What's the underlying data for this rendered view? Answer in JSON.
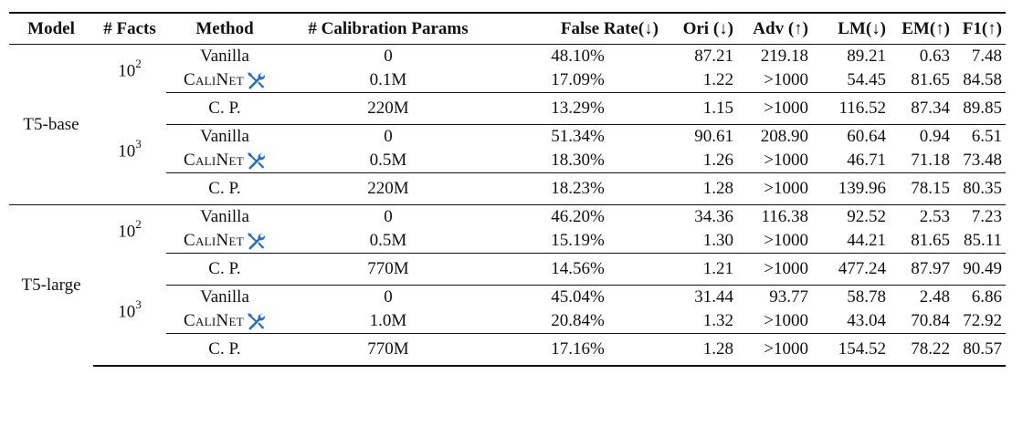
{
  "header": {
    "model": "Model",
    "facts": "# Facts",
    "method": "Method",
    "params": "# Calibration Params",
    "false_rate": "False Rate(↓)",
    "ori": "Ori (↓)",
    "adv": "Adv (↑)",
    "lm": "LM(↓)",
    "em": "EM(↑)",
    "f1": "F1(↑)"
  },
  "icons": {
    "calinet_icon": "wrench-screwdriver-icon",
    "calinet_icon_color": "#1f6fd1"
  },
  "models": [
    {
      "name": "T5-base",
      "groups": [
        {
          "facts_base": "10",
          "facts_exp": "2",
          "rows": [
            {
              "method": "Vanilla",
              "params": "0",
              "false_rate": "48.10%",
              "ori": "87.21",
              "adv": "219.18",
              "lm": "89.21",
              "em": "0.63",
              "f1": "7.48"
            },
            {
              "method": "CaliNet",
              "params": "0.1M",
              "false_rate": "17.09%",
              "ori": "1.22",
              "adv": ">1000",
              "lm": "54.45",
              "em": "81.65",
              "f1": "84.58"
            },
            {
              "method": "C. P.",
              "params": "220M",
              "false_rate": "13.29%",
              "ori": "1.15",
              "adv": ">1000",
              "lm": "116.52",
              "em": "87.34",
              "f1": "89.85"
            }
          ]
        },
        {
          "facts_base": "10",
          "facts_exp": "3",
          "rows": [
            {
              "method": "Vanilla",
              "params": "0",
              "false_rate": "51.34%",
              "ori": "90.61",
              "adv": "208.90",
              "lm": "60.64",
              "em": "0.94",
              "f1": "6.51"
            },
            {
              "method": "CaliNet",
              "params": "0.5M",
              "false_rate": "18.30%",
              "ori": "1.26",
              "adv": ">1000",
              "lm": "46.71",
              "em": "71.18",
              "f1": "73.48"
            },
            {
              "method": "C. P.",
              "params": "220M",
              "false_rate": "18.23%",
              "ori": "1.28",
              "adv": ">1000",
              "lm": "139.96",
              "em": "78.15",
              "f1": "80.35"
            }
          ]
        }
      ]
    },
    {
      "name": "T5-large",
      "groups": [
        {
          "facts_base": "10",
          "facts_exp": "2",
          "rows": [
            {
              "method": "Vanilla",
              "params": "0",
              "false_rate": "46.20%",
              "ori": "34.36",
              "adv": "116.38",
              "lm": "92.52",
              "em": "2.53",
              "f1": "7.23"
            },
            {
              "method": "CaliNet",
              "params": "0.5M",
              "false_rate": "15.19%",
              "ori": "1.30",
              "adv": ">1000",
              "lm": "44.21",
              "em": "81.65",
              "f1": "85.11"
            },
            {
              "method": "C. P.",
              "params": "770M",
              "false_rate": "14.56%",
              "ori": "1.21",
              "adv": ">1000",
              "lm": "477.24",
              "em": "87.97",
              "f1": "90.49"
            }
          ]
        },
        {
          "facts_base": "10",
          "facts_exp": "3",
          "rows": [
            {
              "method": "Vanilla",
              "params": "0",
              "false_rate": "45.04%",
              "ori": "31.44",
              "adv": "93.77",
              "lm": "58.78",
              "em": "2.48",
              "f1": "6.86"
            },
            {
              "method": "CaliNet",
              "params": "1.0M",
              "false_rate": "20.84%",
              "ori": "1.32",
              "adv": ">1000",
              "lm": "43.04",
              "em": "70.84",
              "f1": "72.92"
            },
            {
              "method": "C. P.",
              "params": "770M",
              "false_rate": "17.16%",
              "ori": "1.28",
              "adv": ">1000",
              "lm": "154.52",
              "em": "78.22",
              "f1": "80.57"
            }
          ]
        }
      ]
    }
  ]
}
